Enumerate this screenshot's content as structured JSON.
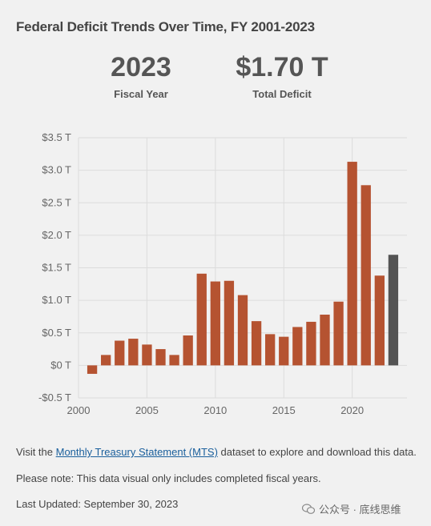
{
  "title": "Federal Deficit Trends Over Time, FY 2001-2023",
  "stats": {
    "year_value": "2023",
    "year_label": "Fiscal Year",
    "deficit_value": "$1.70 T",
    "deficit_label": "Total Deficit"
  },
  "chart_data": {
    "type": "bar",
    "title": "",
    "xlabel": "",
    "ylabel": "",
    "x": [
      2001,
      2002,
      2003,
      2004,
      2005,
      2006,
      2007,
      2008,
      2009,
      2010,
      2011,
      2012,
      2013,
      2014,
      2015,
      2016,
      2017,
      2018,
      2019,
      2020,
      2021,
      2022,
      2023
    ],
    "values": [
      -0.13,
      0.16,
      0.38,
      0.41,
      0.32,
      0.25,
      0.16,
      0.46,
      1.41,
      1.29,
      1.3,
      1.08,
      0.68,
      0.48,
      0.44,
      0.59,
      0.67,
      0.78,
      0.98,
      3.13,
      2.77,
      1.38,
      1.7
    ],
    "highlight_index": 22,
    "ylim": [
      -0.5,
      3.5
    ],
    "yticks": [
      -0.5,
      0,
      0.5,
      1.0,
      1.5,
      2.0,
      2.5,
      3.0,
      3.5
    ],
    "ytick_labels": [
      "-$0.5 T",
      "$0 T",
      "$0.5 T",
      "$1.0 T",
      "$1.5 T",
      "$2.0 T",
      "$2.5 T",
      "$3.0 T",
      "$3.5 T"
    ],
    "xlim": [
      2000,
      2024
    ],
    "xticks": [
      2000,
      2005,
      2010,
      2015,
      2020
    ],
    "xtick_labels": [
      "2000",
      "2005",
      "2010",
      "2015",
      "2020"
    ],
    "grid": true,
    "colors": {
      "bar": "#b55331",
      "highlight": "#545454",
      "grid": "#dcdcdc",
      "axis_text": "#666666"
    }
  },
  "notes": {
    "visit_prefix": "Visit the ",
    "visit_link": "Monthly Treasury Statement (MTS)",
    "visit_suffix": " dataset to explore and download this data.",
    "please_note": "Please note: This data visual only includes completed fiscal years.",
    "last_updated": "Last Updated: September 30, 2023"
  },
  "watermark": {
    "text": "公众号 · 底线思维",
    "icon": "wechat-icon"
  }
}
